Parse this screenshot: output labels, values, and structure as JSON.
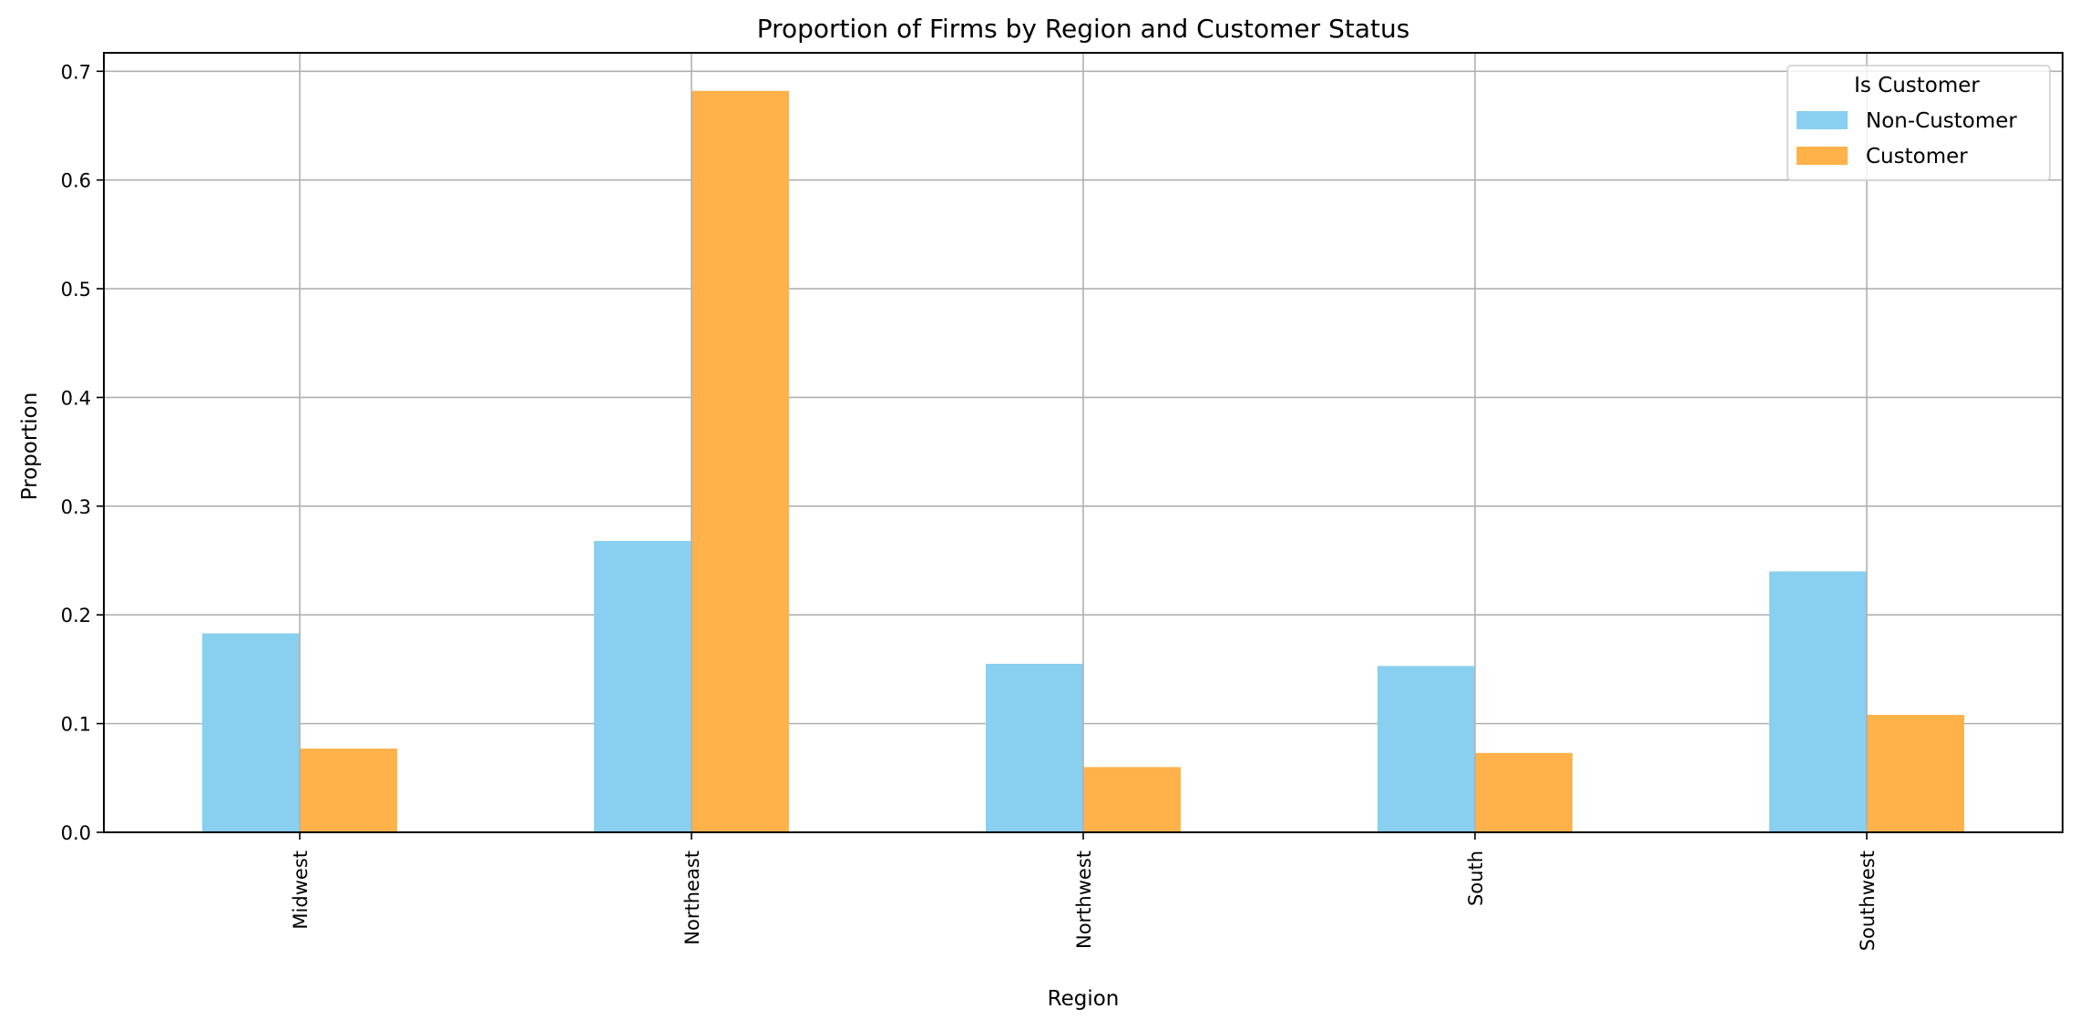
{
  "chart_data": {
    "type": "bar",
    "title": "Proportion of Firms by Region and Customer Status",
    "xlabel": "Region",
    "ylabel": "Proportion",
    "categories": [
      "Midwest",
      "Northeast",
      "Northwest",
      "South",
      "Southwest"
    ],
    "series": [
      {
        "name": "Non-Customer",
        "color": "#89CFF0",
        "values": [
          0.183,
          0.268,
          0.155,
          0.153,
          0.24
        ]
      },
      {
        "name": "Customer",
        "color": "#FFB14A",
        "values": [
          0.077,
          0.682,
          0.06,
          0.073,
          0.108
        ]
      }
    ],
    "ylim": [
      0,
      0.717
    ],
    "yticks": [
      "0.0",
      "0.1",
      "0.2",
      "0.3",
      "0.4",
      "0.5",
      "0.6",
      "0.7"
    ],
    "grid": true,
    "legend": {
      "title": "Is Customer",
      "placement": "top-right"
    },
    "x_tick_rotation": "vertical"
  }
}
